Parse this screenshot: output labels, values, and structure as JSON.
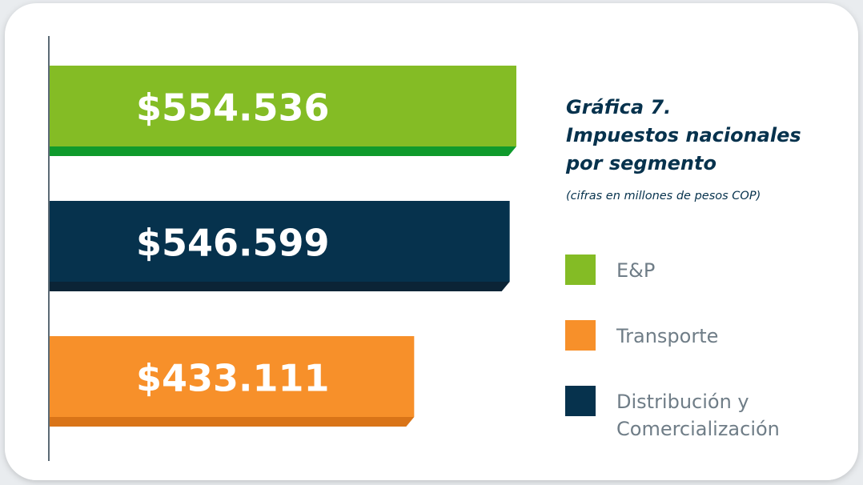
{
  "chart_data": {
    "type": "bar",
    "orientation": "horizontal",
    "title": [
      "Gráfica 7.",
      "Impuestos nacionales",
      "por segmento"
    ],
    "subtitle": "(cifras en millones de pesos COP)",
    "bars": [
      {
        "value": 554536,
        "value_label": "$554.536",
        "color": "#84bc25",
        "edge_color": "#0f9a2c"
      },
      {
        "value": 546599,
        "value_label": "$546.599",
        "color": "#06324d",
        "edge_color": "#0b2436"
      },
      {
        "value": 433111,
        "value_label": "$433.111",
        "color": "#f7902a",
        "edge_color": "#d97418"
      }
    ],
    "legend": [
      {
        "name": [
          "E&P"
        ],
        "color": "#84bc25"
      },
      {
        "name": [
          "Transporte"
        ],
        "color": "#f7902a"
      },
      {
        "name": [
          "Distribución y",
          "Comercialización"
        ],
        "color": "#06324d"
      }
    ]
  }
}
